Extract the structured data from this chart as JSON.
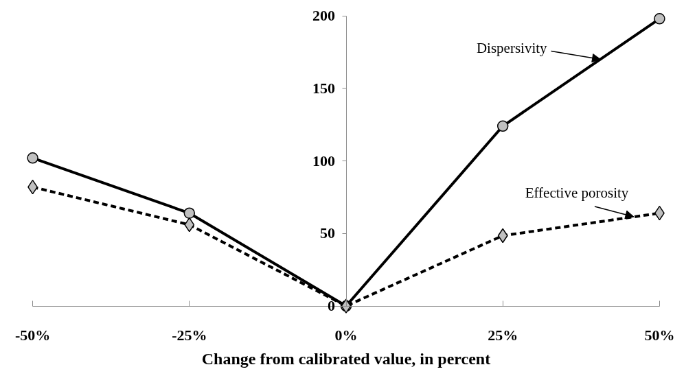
{
  "chart_data": {
    "type": "line",
    "xlabel": "Change from calibrated value, in percent",
    "x": [
      -50,
      -25,
      0,
      25,
      50
    ],
    "xlim": [
      -50,
      50
    ],
    "xticks": [
      {
        "value": -50,
        "label": "-50%"
      },
      {
        "value": -25,
        "label": "-25%"
      },
      {
        "value": 0,
        "label": "0%"
      },
      {
        "value": 25,
        "label": "25%"
      },
      {
        "value": 50,
        "label": "50%"
      }
    ],
    "ylim": [
      0,
      200
    ],
    "yticks": [
      0,
      50,
      100,
      150,
      200
    ],
    "series": [
      {
        "color": "#000000",
        "marker": "circle",
        "line_style": "solid",
        "values": [
          102,
          64,
          0,
          124,
          198
        ]
      },
      {
        "color": "#000000",
        "marker": "diamond",
        "line_style": "dashed",
        "values": [
          82,
          56,
          0,
          48.5,
          64
        ]
      }
    ],
    "annotations": [
      {
        "text": "Dispersivity",
        "x": 40.6,
        "y": 170
      },
      {
        "text": "Effective porosity",
        "x": 45.9,
        "y": 61.5
      }
    ],
    "grid": false
  }
}
